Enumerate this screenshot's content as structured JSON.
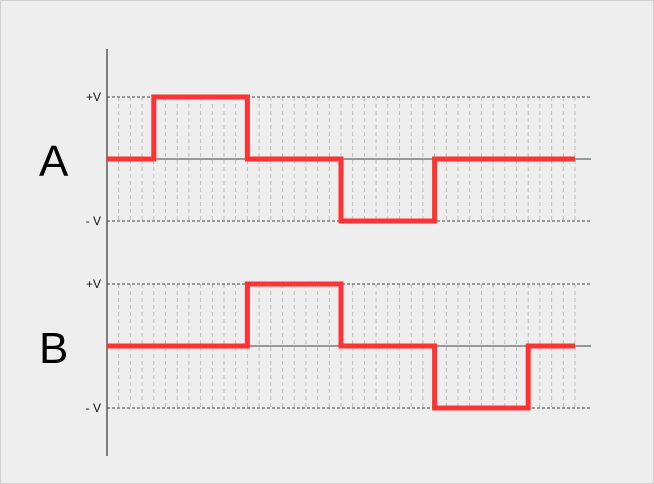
{
  "chart_data": {
    "type": "line",
    "steps": 20,
    "level_labels": {
      "positive": "+V",
      "negative": "- V"
    },
    "channels": [
      {
        "name": "A",
        "x": [
          0,
          2,
          2,
          6,
          6,
          10,
          10,
          14,
          14,
          20
        ],
        "y": [
          0,
          0,
          1,
          1,
          0,
          0,
          -1,
          -1,
          0,
          0
        ]
      },
      {
        "name": "B",
        "x": [
          0,
          6,
          6,
          10,
          10,
          14,
          14,
          18,
          18,
          20
        ],
        "y": [
          0,
          0,
          1,
          1,
          0,
          0,
          -1,
          -1,
          0,
          0
        ]
      }
    ],
    "colors": {
      "signal": "#ff3333",
      "axis": "#333333",
      "zero_line": "#666666",
      "level_line": "#444444",
      "step_grid": "#bdbdbd"
    }
  }
}
